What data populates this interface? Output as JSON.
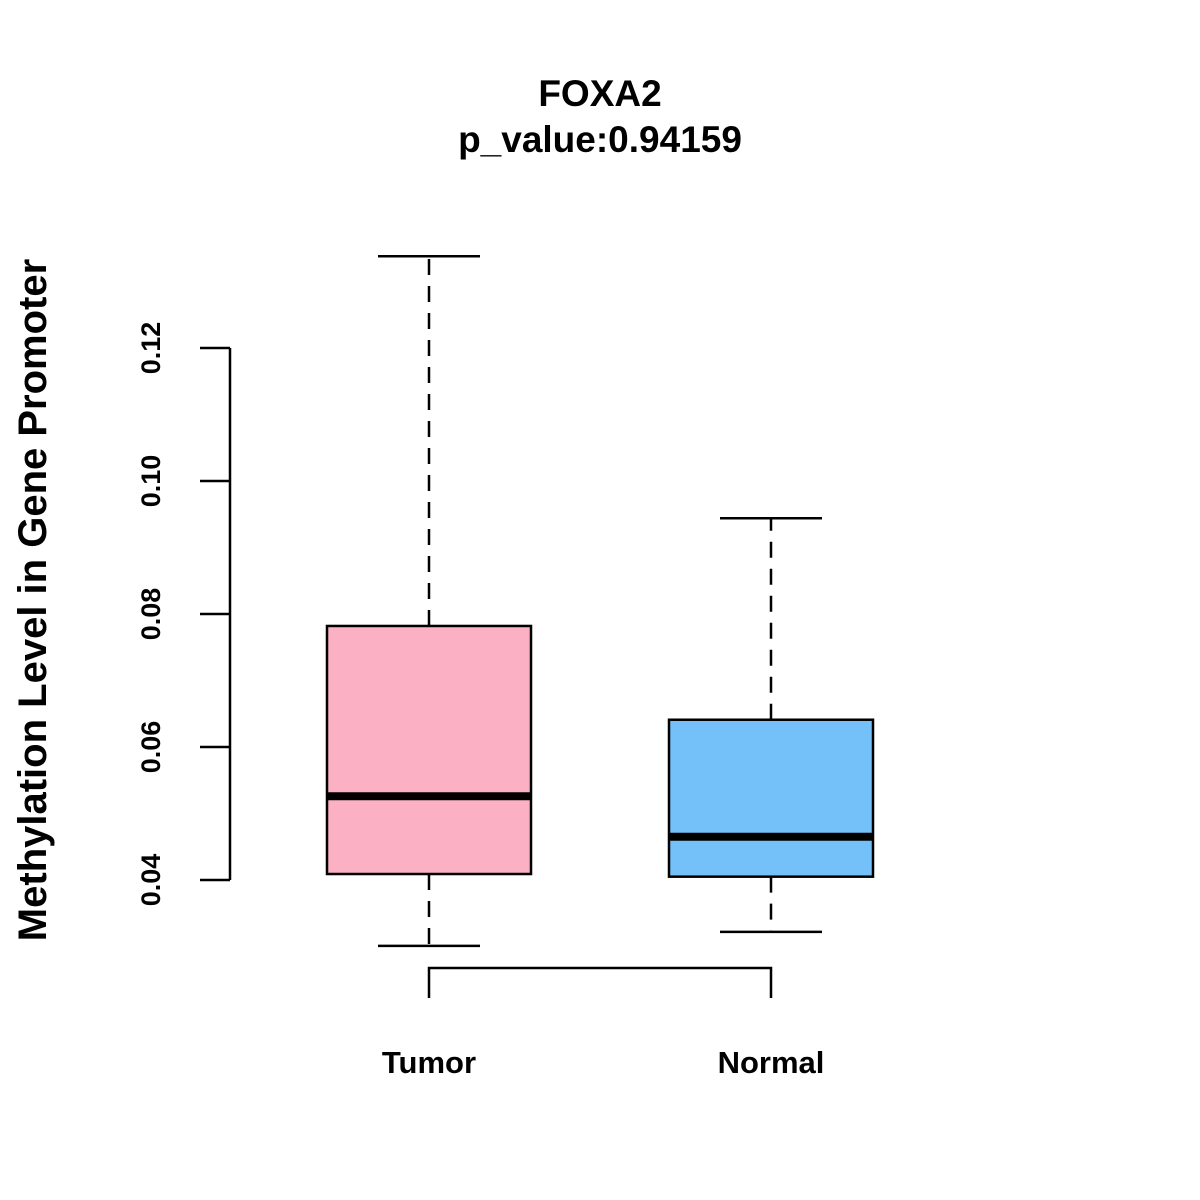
{
  "chart_data": {
    "type": "boxplot",
    "title": "FOXA2",
    "subtitle": "p_value:0.94159",
    "xlabel": "",
    "ylabel": "Methylation Level in Gene Promoter",
    "ylim": [
      0.04,
      0.12
    ],
    "yticks": [
      "0.04",
      "0.06",
      "0.08",
      "0.10",
      "0.12"
    ],
    "grid": false,
    "series": [
      {
        "name": "Tumor",
        "color": "#FCB0C3",
        "whisker_low": 0.0301,
        "q1": 0.0409,
        "median": 0.0526,
        "q3": 0.0782,
        "whisker_high": 0.1338
      },
      {
        "name": "Normal",
        "color": "#74C0F8",
        "whisker_low": 0.0322,
        "q1": 0.0405,
        "median": 0.0465,
        "q3": 0.0641,
        "whisker_high": 0.0944
      }
    ],
    "comparison_bracket": {
      "from": "Tumor",
      "to": "Normal"
    }
  }
}
